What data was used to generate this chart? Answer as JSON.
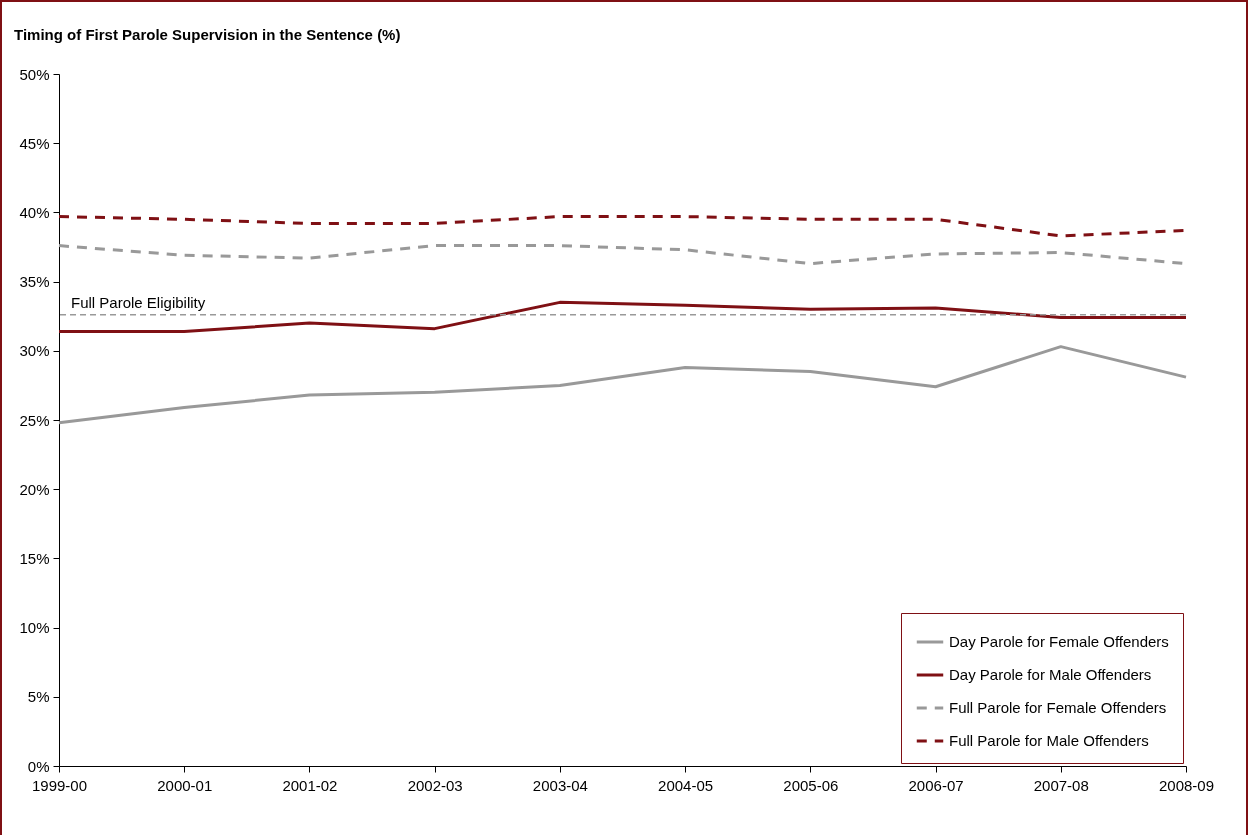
{
  "chart_data": {
    "type": "line",
    "title": "Timing of First Parole Supervision in the Sentence (%)",
    "categories": [
      "1999-00",
      "2000-01",
      "2001-02",
      "2002-03",
      "2003-04",
      "2004-05",
      "2005-06",
      "2006-07",
      "2007-08",
      "2008-09"
    ],
    "series": [
      {
        "name": "Day Parole for Female Offenders",
        "color": "#999999",
        "line_style": "solid",
        "values": [
          24.8,
          25.9,
          26.8,
          27.0,
          27.5,
          28.8,
          28.5,
          27.4,
          30.3,
          28.1
        ]
      },
      {
        "name": "Day Parole for Male Offenders",
        "color": "#7f1014",
        "line_style": "solid",
        "values": [
          31.4,
          31.4,
          32.0,
          31.6,
          33.5,
          33.3,
          33.0,
          33.1,
          32.4,
          32.4
        ]
      },
      {
        "name": "Full Parole for Female Offenders",
        "color": "#999999",
        "line_style": "dashed",
        "values": [
          37.6,
          36.9,
          36.7,
          37.6,
          37.6,
          37.3,
          36.3,
          37.0,
          37.1,
          36.3
        ]
      },
      {
        "name": "Full Parole for Male Offenders",
        "color": "#7f1014",
        "line_style": "dashed",
        "values": [
          39.7,
          39.5,
          39.2,
          39.2,
          39.7,
          39.7,
          39.5,
          39.5,
          38.3,
          38.7
        ]
      }
    ],
    "ylim": [
      0,
      50
    ],
    "yticks": [
      {
        "value": 0,
        "label": "0%"
      },
      {
        "value": 5,
        "label": "5%"
      },
      {
        "value": 10,
        "label": "10%"
      },
      {
        "value": 15,
        "label": "15%"
      },
      {
        "value": 20,
        "label": "20%"
      },
      {
        "value": 25,
        "label": "25%"
      },
      {
        "value": 30,
        "label": "30%"
      },
      {
        "value": 35,
        "label": "35%"
      },
      {
        "value": 40,
        "label": "40%"
      },
      {
        "value": 45,
        "label": "45%"
      },
      {
        "value": 50,
        "label": "50%"
      }
    ],
    "ref_lines": [
      {
        "axis": "y",
        "value": 32.6,
        "label": "Full Parole Eligibility",
        "color": "#999999",
        "line_style": "dashed"
      }
    ],
    "grid": false,
    "legend": "bottom right",
    "marker": "none"
  }
}
